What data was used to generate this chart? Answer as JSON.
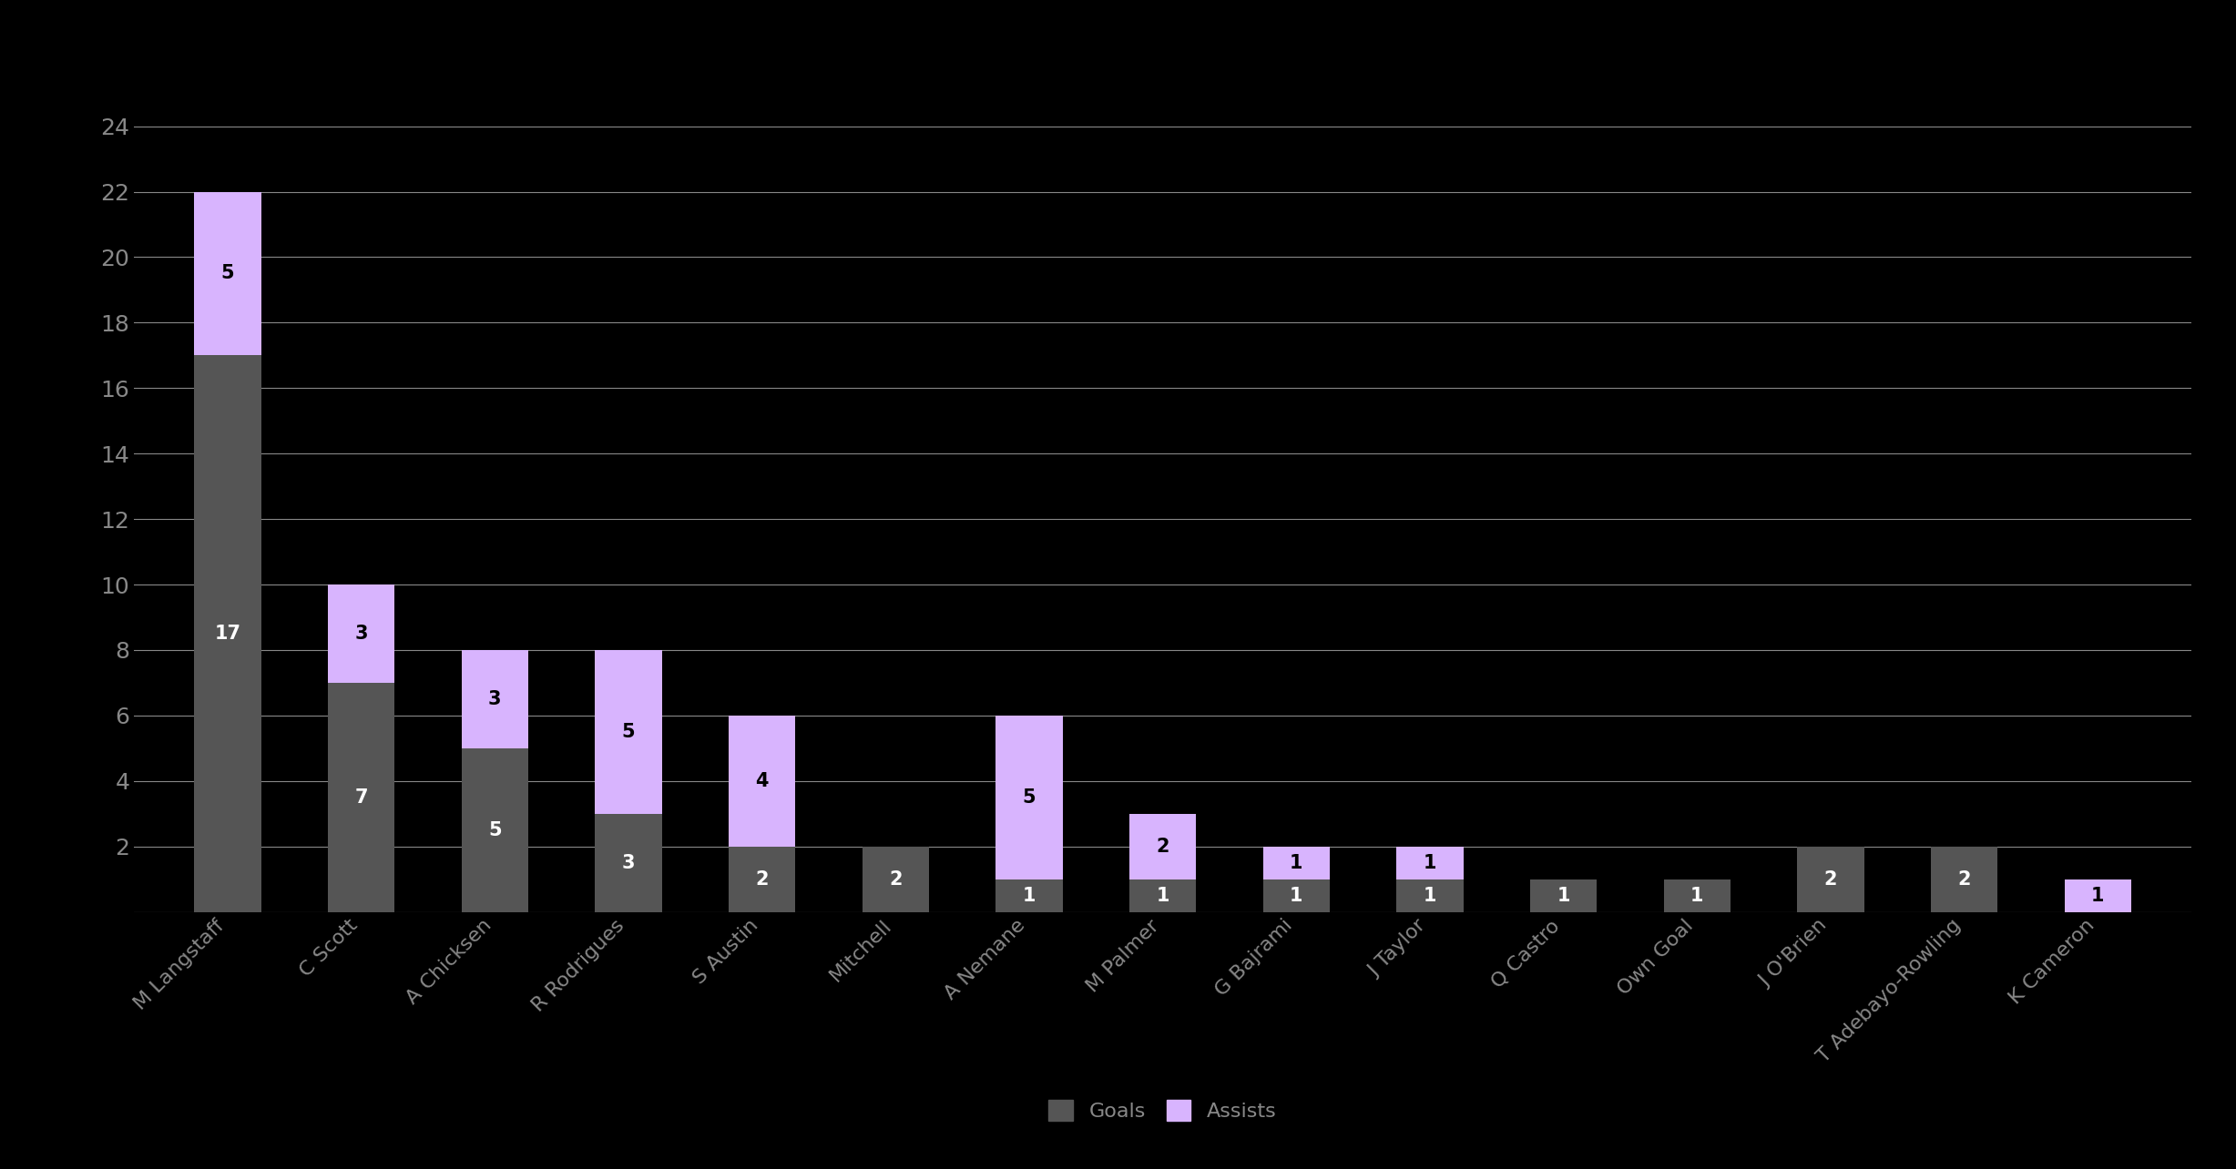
{
  "players": [
    "M Langstaff",
    "C Scott",
    "A Chicksen",
    "R Rodrigues",
    "S Austin",
    "Mitchell",
    "A Nemane",
    "M Palmer",
    "G Bajrami",
    "J Taylor",
    "Q Castro",
    "Own Goal",
    "J O'Brien",
    "T Adebayo-Rowling",
    "K Cameron"
  ],
  "goals": [
    17,
    7,
    5,
    3,
    2,
    2,
    1,
    1,
    1,
    1,
    1,
    1,
    2,
    2,
    0
  ],
  "assists": [
    5,
    3,
    3,
    5,
    4,
    0,
    5,
    2,
    1,
    1,
    0,
    0,
    0,
    0,
    1
  ],
  "goals_color": "#555555",
  "assists_color": "#d8b4fe",
  "background_color": "#000000",
  "text_color": "#888888",
  "grid_color": "#888888",
  "ylim": [
    0,
    25
  ],
  "yticks": [
    0,
    2,
    4,
    6,
    8,
    10,
    12,
    14,
    16,
    18,
    20,
    22,
    24
  ],
  "bar_width": 0.5,
  "tick_fontsize": 18,
  "legend_fontsize": 16,
  "value_fontsize": 15,
  "xtick_fontsize": 16
}
